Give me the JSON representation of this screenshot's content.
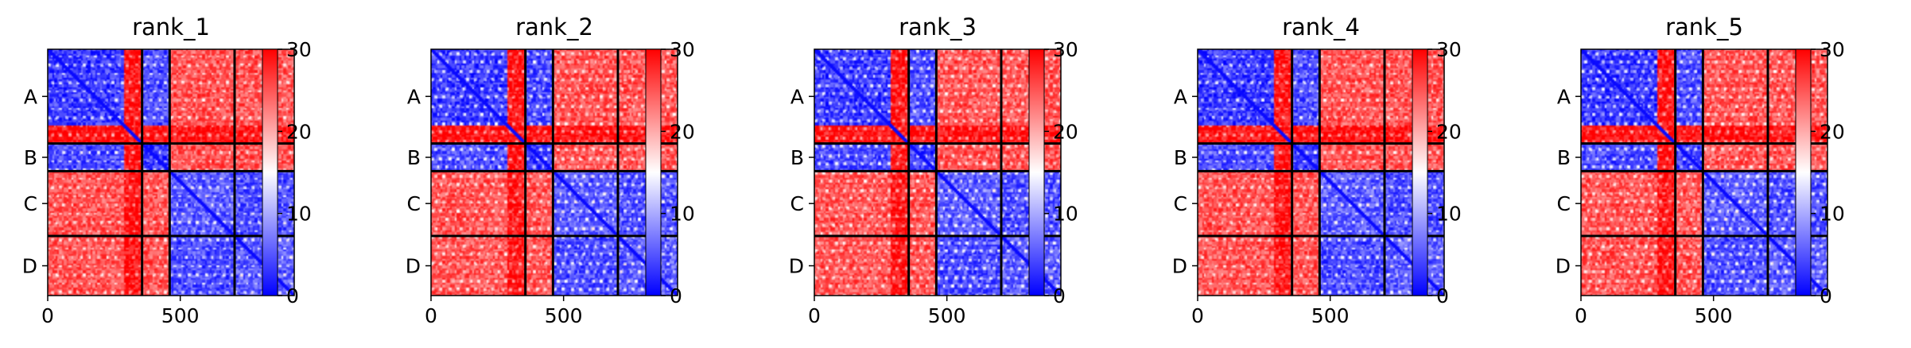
{
  "figure": {
    "colorscale": {
      "low_color": "#0000ff",
      "mid_color": "#ffffff",
      "high_color": "#ff0000"
    },
    "divider_color": "#000000"
  },
  "chart_data": [
    {
      "type": "heatmap",
      "title": "rank_1",
      "xlabel": "",
      "ylabel": "",
      "xlim": [
        0,
        930
      ],
      "ylim": [
        930,
        0
      ],
      "x_ticks": [
        0,
        500
      ],
      "x_tick_labels": [
        "0",
        "500"
      ],
      "row_labels": [
        "A",
        "B",
        "C",
        "D"
      ],
      "segment_boundaries": [
        0,
        356,
        460,
        705,
        930
      ],
      "colorbar": {
        "range": [
          0,
          30
        ],
        "ticks": [
          0,
          10,
          20,
          30
        ],
        "tick_labels": [
          "0",
          "10",
          "20",
          "30"
        ]
      },
      "block_pattern": "Within-chain blocks (A, B, C, D) are mostly blue (0–10); inter-chain blocks A/B vs C/D are mostly red (20–30); residues ~285–356 of A are red against all chains."
    },
    {
      "type": "heatmap",
      "title": "rank_2",
      "xlabel": "",
      "ylabel": "",
      "xlim": [
        0,
        930
      ],
      "ylim": [
        930,
        0
      ],
      "x_ticks": [
        0,
        500
      ],
      "x_tick_labels": [
        "0",
        "500"
      ],
      "row_labels": [
        "A",
        "B",
        "C",
        "D"
      ],
      "segment_boundaries": [
        0,
        356,
        460,
        705,
        930
      ],
      "colorbar": {
        "range": [
          0,
          30
        ],
        "ticks": [
          0,
          10,
          20,
          30
        ],
        "tick_labels": [
          "0",
          "10",
          "20",
          "30"
        ]
      },
      "block_pattern": "Same block structure as rank_1."
    },
    {
      "type": "heatmap",
      "title": "rank_3",
      "xlabel": "",
      "ylabel": "",
      "xlim": [
        0,
        930
      ],
      "ylim": [
        930,
        0
      ],
      "x_ticks": [
        0,
        500
      ],
      "x_tick_labels": [
        "0",
        "500"
      ],
      "row_labels": [
        "A",
        "B",
        "C",
        "D"
      ],
      "segment_boundaries": [
        0,
        356,
        460,
        705,
        930
      ],
      "colorbar": {
        "range": [
          0,
          30
        ],
        "ticks": [
          0,
          10,
          20,
          30
        ],
        "tick_labels": [
          "0",
          "10",
          "20",
          "30"
        ]
      },
      "block_pattern": "Same block structure as rank_1."
    },
    {
      "type": "heatmap",
      "title": "rank_4",
      "xlabel": "",
      "ylabel": "",
      "xlim": [
        0,
        930
      ],
      "ylim": [
        930,
        0
      ],
      "x_ticks": [
        0,
        500
      ],
      "x_tick_labels": [
        "0",
        "500"
      ],
      "row_labels": [
        "A",
        "B",
        "C",
        "D"
      ],
      "segment_boundaries": [
        0,
        356,
        460,
        705,
        930
      ],
      "colorbar": {
        "range": [
          0,
          30
        ],
        "ticks": [
          0,
          10,
          20,
          30
        ],
        "tick_labels": [
          "0",
          "10",
          "20",
          "30"
        ]
      },
      "block_pattern": "Same block structure as rank_1."
    },
    {
      "type": "heatmap",
      "title": "rank_5",
      "xlabel": "",
      "ylabel": "",
      "xlim": [
        0,
        930
      ],
      "ylim": [
        930,
        0
      ],
      "x_ticks": [
        0,
        500
      ],
      "x_tick_labels": [
        "0",
        "500"
      ],
      "row_labels": [
        "A",
        "B",
        "C",
        "D"
      ],
      "segment_boundaries": [
        0,
        356,
        460,
        705,
        930
      ],
      "colorbar": {
        "range": [
          0,
          30
        ],
        "ticks": [
          0,
          10,
          20,
          30
        ],
        "tick_labels": [
          "0",
          "10",
          "20",
          "30"
        ]
      },
      "block_pattern": "Same block structure as rank_1."
    }
  ]
}
